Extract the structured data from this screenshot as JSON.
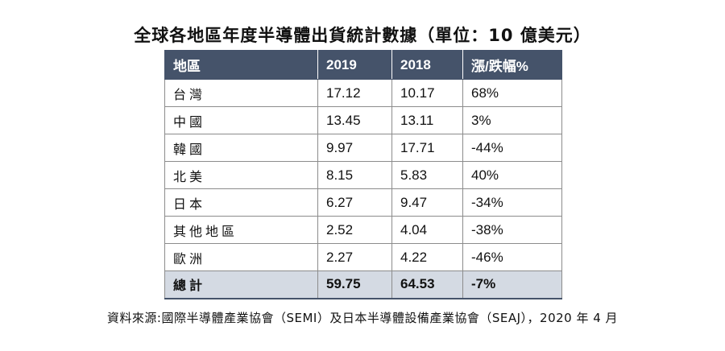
{
  "title": "全球各地區年度半導體出貨統計數據（單位：10 億美元）",
  "table": {
    "headers": [
      "地區",
      "2019",
      "2018",
      "漲/跌幅%"
    ],
    "rows": [
      [
        "台灣",
        "17.12",
        "10.17",
        "68%"
      ],
      [
        "中國",
        "13.45",
        "13.11",
        "3%"
      ],
      [
        "韓國",
        "9.97",
        "17.71",
        "-44%"
      ],
      [
        "北美",
        "8.15",
        "5.83",
        "40%"
      ],
      [
        "日本",
        "6.27",
        "9.47",
        "-34%"
      ],
      [
        "其他地區",
        "2.52",
        "4.04",
        "-38%"
      ],
      [
        "歐洲",
        "2.27",
        "4.22",
        "-46%"
      ]
    ],
    "total": [
      "總計",
      "59.75",
      "64.53",
      "-7%"
    ]
  },
  "source": "資料來源:國際半導體產業協會（SEMI）及日本半導體設備產業協會（SEAJ），2020 年 4 月",
  "colors": {
    "header_bg": "#45536a",
    "total_bg": "#d4dae3"
  }
}
